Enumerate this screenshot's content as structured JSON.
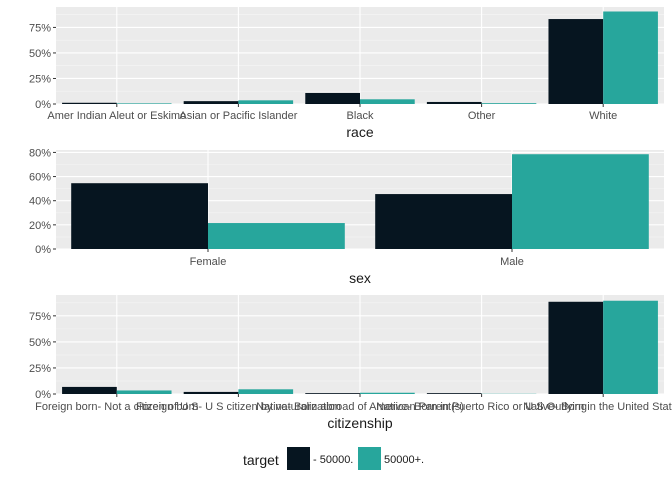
{
  "colors": {
    "panel_bg": "#ebebeb",
    "grid_major": "#ffffff",
    "grid_minor": "#f5f5f5",
    "text": "#4d4d4d"
  },
  "legend": {
    "title": "target",
    "items": [
      {
        "label": "- 50000.",
        "color": "#061520"
      },
      {
        "label": "50000+.",
        "color": "#27a69c"
      }
    ]
  },
  "chart_data": [
    {
      "type": "bar",
      "xlabel": "race",
      "categories": [
        "Amer Indian Aleut or Eskimo",
        "Asian or Pacific Islander",
        "Black",
        "Other",
        "White"
      ],
      "ylim": [
        0,
        0.95
      ],
      "yticks": [
        0,
        0.25,
        0.5,
        0.75
      ],
      "ytick_labels": [
        "0%",
        "25%",
        "50%",
        "75%"
      ],
      "series": [
        {
          "name": "- 50000.",
          "values": [
            0.012,
            0.028,
            0.108,
            0.02,
            0.832
          ]
        },
        {
          "name": "50000+.",
          "values": [
            0.006,
            0.036,
            0.046,
            0.008,
            0.906
          ]
        }
      ]
    },
    {
      "type": "bar",
      "xlabel": "sex",
      "categories": [
        "Female",
        "Male"
      ],
      "ylim": [
        0,
        0.82
      ],
      "yticks": [
        0,
        0.2,
        0.4,
        0.6,
        0.8
      ],
      "ytick_labels": [
        "0%",
        "20%",
        "40%",
        "60%",
        "80%"
      ],
      "series": [
        {
          "name": "- 50000.",
          "values": [
            0.545,
            0.455
          ]
        },
        {
          "name": "50000+.",
          "values": [
            0.215,
            0.785
          ]
        }
      ]
    },
    {
      "type": "bar",
      "xlabel": "citizenship",
      "categories": [
        "Foreign born- Not a citizen of U S",
        "Foreign born- U S citizen by naturalization",
        "Native- Born abroad of American Parent(s)",
        "Native- Born in Puerto Rico or U S Outlying",
        "Native- Born in the United States"
      ],
      "ylim": [
        0,
        0.95
      ],
      "yticks": [
        0,
        0.25,
        0.5,
        0.75
      ],
      "ytick_labels": [
        "0%",
        "25%",
        "50%",
        "75%"
      ],
      "series": [
        {
          "name": "- 50000.",
          "values": [
            0.068,
            0.02,
            0.008,
            0.008,
            0.885
          ]
        },
        {
          "name": "50000+.",
          "values": [
            0.034,
            0.045,
            0.012,
            0.002,
            0.895
          ]
        }
      ]
    }
  ]
}
